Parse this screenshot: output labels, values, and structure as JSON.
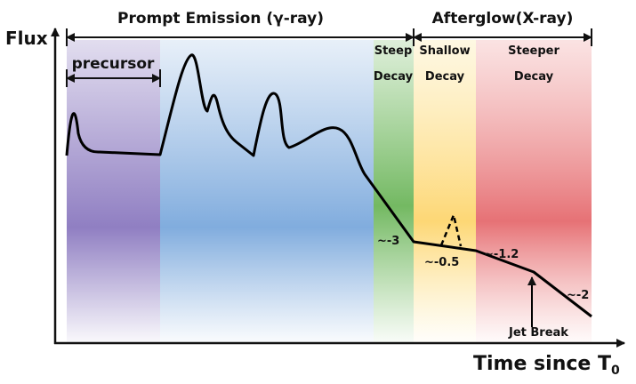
{
  "header": {
    "prompt": "Prompt Emission (γ-ray)",
    "afterglow": "Afterglow(X-ray)"
  },
  "axes": {
    "y_label": "Flux",
    "x_label": {
      "text": "Time since T",
      "subscript": "0"
    }
  },
  "regions": {
    "precursor": "precursor",
    "steep": [
      "Steep",
      "Decay"
    ],
    "shallow": [
      "Shallow",
      "Decay"
    ],
    "steeper": [
      "Steeper",
      "Decay"
    ]
  },
  "slopes": {
    "steep": "~-3",
    "shallow": "~-0.5",
    "steeper": "~-1.2",
    "post_break": "~-2"
  },
  "annotations": {
    "jet_break": "Jet Break"
  }
}
